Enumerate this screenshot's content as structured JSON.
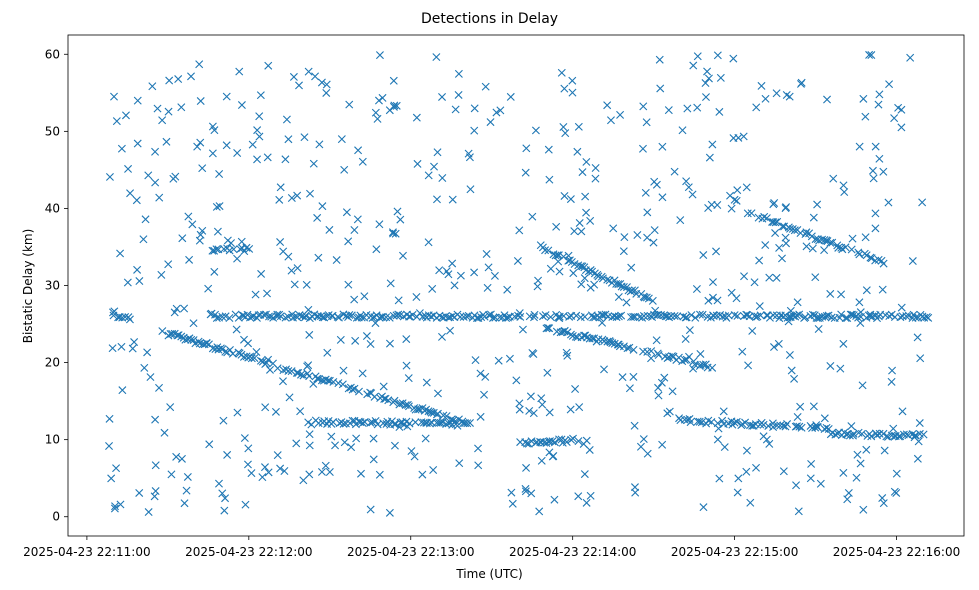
{
  "chart_data": {
    "type": "scatter",
    "title": "Detections in Delay",
    "xlabel": "Time (UTC)",
    "ylabel": "Bistatic Delay (km)",
    "marker": "x",
    "color": "#1f77b4",
    "grid": false,
    "xlim": [
      "2025-04-23 22:10:53",
      "2025-04-23 22:16:25"
    ],
    "ylim": [
      -2.5,
      62.5
    ],
    "x_ticks": [
      "2025-04-23 22:11:00",
      "2025-04-23 22:12:00",
      "2025-04-23 22:13:00",
      "2025-04-23 22:14:00",
      "2025-04-23 22:15:00",
      "2025-04-23 22:16:00"
    ],
    "y_ticks": [
      0,
      10,
      20,
      30,
      40,
      50,
      60
    ],
    "time_range": [
      "2025-04-23 22:11:08",
      "2025-04-23 22:16:12"
    ],
    "series": [
      {
        "tracks": [
          {
            "t0": "2025-04-23 22:11:08",
            "t1": "2025-04-23 22:11:16",
            "y0": 26.0,
            "y1": 25.6
          },
          {
            "t0": "2025-04-23 22:11:28",
            "t1": "2025-04-23 22:13:22",
            "y0": 24.0,
            "y1": 12.0
          },
          {
            "t0": "2025-04-23 22:12:25",
            "t1": "2025-04-23 22:13:18",
            "y0": 12.3,
            "y1": 12.0
          },
          {
            "t0": "2025-04-23 22:13:48",
            "t1": "2025-04-23 22:14:30",
            "y0": 35.0,
            "y1": 28.0
          },
          {
            "t0": "2025-04-23 22:13:50",
            "t1": "2025-04-23 22:14:50",
            "y0": 24.5,
            "y1": 19.5
          },
          {
            "t0": "2025-04-23 22:14:40",
            "t1": "2025-04-23 22:15:35",
            "y0": 12.5,
            "y1": 11.5
          },
          {
            "t0": "2025-04-23 22:15:05",
            "t1": "2025-04-23 22:15:55",
            "y0": 39.5,
            "y1": 33.0
          },
          {
            "t0": "2025-04-23 22:13:40",
            "t1": "2025-04-23 22:14:05",
            "y0": 9.5,
            "y1": 10.0
          },
          {
            "t0": "2025-04-23 22:11:45",
            "t1": "2025-04-23 22:12:00",
            "y0": 34.7,
            "y1": 34.7
          },
          {
            "t0": "2025-04-23 22:11:45",
            "t1": "2025-04-23 22:16:12",
            "y0": 26.0,
            "y1": 26.0
          },
          {
            "t0": "2025-04-23 22:15:35",
            "t1": "2025-04-23 22:16:10",
            "y0": 10.8,
            "y1": 10.5
          }
        ],
        "background_noise": {
          "count": 620,
          "y_range": [
            0.5,
            60
          ]
        }
      }
    ]
  }
}
